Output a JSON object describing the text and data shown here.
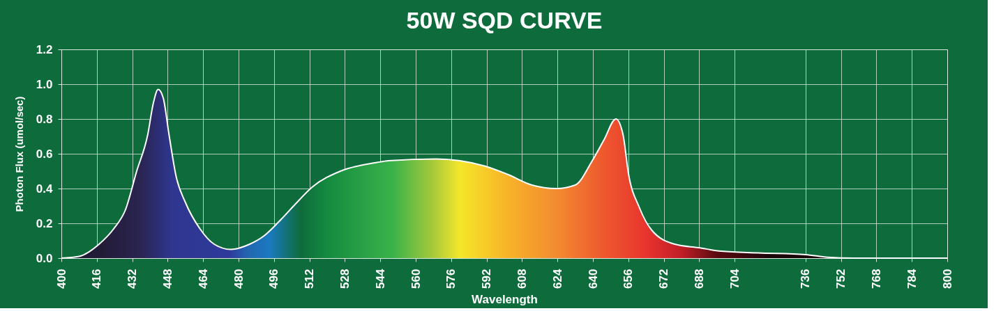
{
  "chart_data": {
    "type": "area",
    "title": "50W SQD CURVE",
    "xlabel": "Wavelength",
    "ylabel": "Photon Flux (umol/sec)",
    "series": [
      {
        "color": "#ffffff",
        "x": [
          400,
          408,
          417,
          423.7,
          429,
          434,
          439,
          441.5,
          443.7,
          446,
          448.6,
          451.8,
          456,
          462.5,
          469,
          476.5,
          485,
          491.7,
          499,
          505.6,
          513.4,
          526,
          542.5,
          547.7,
          569.4,
          580,
          591,
          601.8,
          612.5,
          623.5,
          632,
          639.7,
          645,
          650.4,
          653.6,
          656,
          661,
          666.6,
          677,
          687.7,
          698,
          714.6,
          736,
          746,
          758,
          800
        ],
        "values": [
          0,
          0.01,
          0.08,
          0.17,
          0.28,
          0.5,
          0.71,
          0.89,
          0.97,
          0.92,
          0.71,
          0.47,
          0.32,
          0.17,
          0.08,
          0.05,
          0.08,
          0.13,
          0.22,
          0.31,
          0.41,
          0.5,
          0.55,
          0.56,
          0.57,
          0.56,
          0.53,
          0.48,
          0.42,
          0.4,
          0.42,
          0.56,
          0.68,
          0.8,
          0.71,
          0.49,
          0.29,
          0.16,
          0.08,
          0.06,
          0.04,
          0.03,
          0.02,
          0.005,
          0,
          0
        ]
      }
    ],
    "xlim": [
      400,
      800
    ],
    "xticks": [
      400,
      416,
      432,
      448,
      464,
      480,
      496,
      512,
      528,
      544,
      560,
      576,
      592,
      608,
      624,
      640,
      656,
      672,
      688,
      704,
      736,
      752,
      768,
      784,
      800
    ],
    "ylim": [
      0,
      1.2
    ],
    "yticks": [
      {
        "value": 0,
        "label": "0.0"
      },
      0.2,
      0.4,
      0.6,
      0.8,
      {
        "value": 1,
        "label": "1.0"
      },
      1.2
    ],
    "grid": true
  }
}
